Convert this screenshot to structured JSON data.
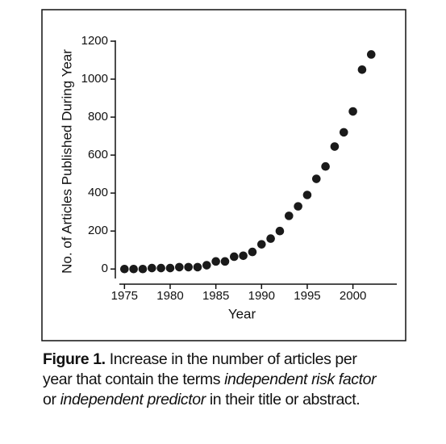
{
  "chart_data": {
    "type": "scatter",
    "x_label": "Year",
    "y_label": "No. of Articles Published During Year",
    "x": [
      1975,
      1976,
      1977,
      1978,
      1979,
      1980,
      1981,
      1982,
      1983,
      1984,
      1985,
      1986,
      1987,
      1988,
      1989,
      1990,
      1991,
      1992,
      1993,
      1994,
      1995,
      1996,
      1997,
      1998,
      1999,
      2000,
      2001,
      2002
    ],
    "values": [
      0,
      0,
      0,
      5,
      5,
      5,
      10,
      10,
      10,
      20,
      40,
      40,
      65,
      70,
      90,
      130,
      160,
      200,
      280,
      330,
      390,
      475,
      540,
      645,
      720,
      830,
      1050,
      1130
    ],
    "color": "#1a1a1a",
    "xlim": [
      1974,
      2004.8
    ],
    "xticks": [
      1975,
      1980,
      1985,
      1990,
      1995,
      2000
    ],
    "ylim": [
      -50,
      1200
    ],
    "yticks": [
      0,
      200,
      400,
      600,
      800,
      {
        "value": 1000,
        "label": "1000"
      },
      {
        "value": 1200,
        "label": "1200"
      }
    ]
  },
  "caption": {
    "label": "Figure 1.",
    "parts": [
      {
        "text": "Increase in the number of articles per year that contain the terms ",
        "italic": false
      },
      {
        "text": "independent risk factor",
        "italic": true
      },
      {
        "text": " or ",
        "italic": false
      },
      {
        "text": "independent predictor",
        "italic": true
      },
      {
        "text": " in their title or abstract.",
        "italic": false
      }
    ]
  }
}
